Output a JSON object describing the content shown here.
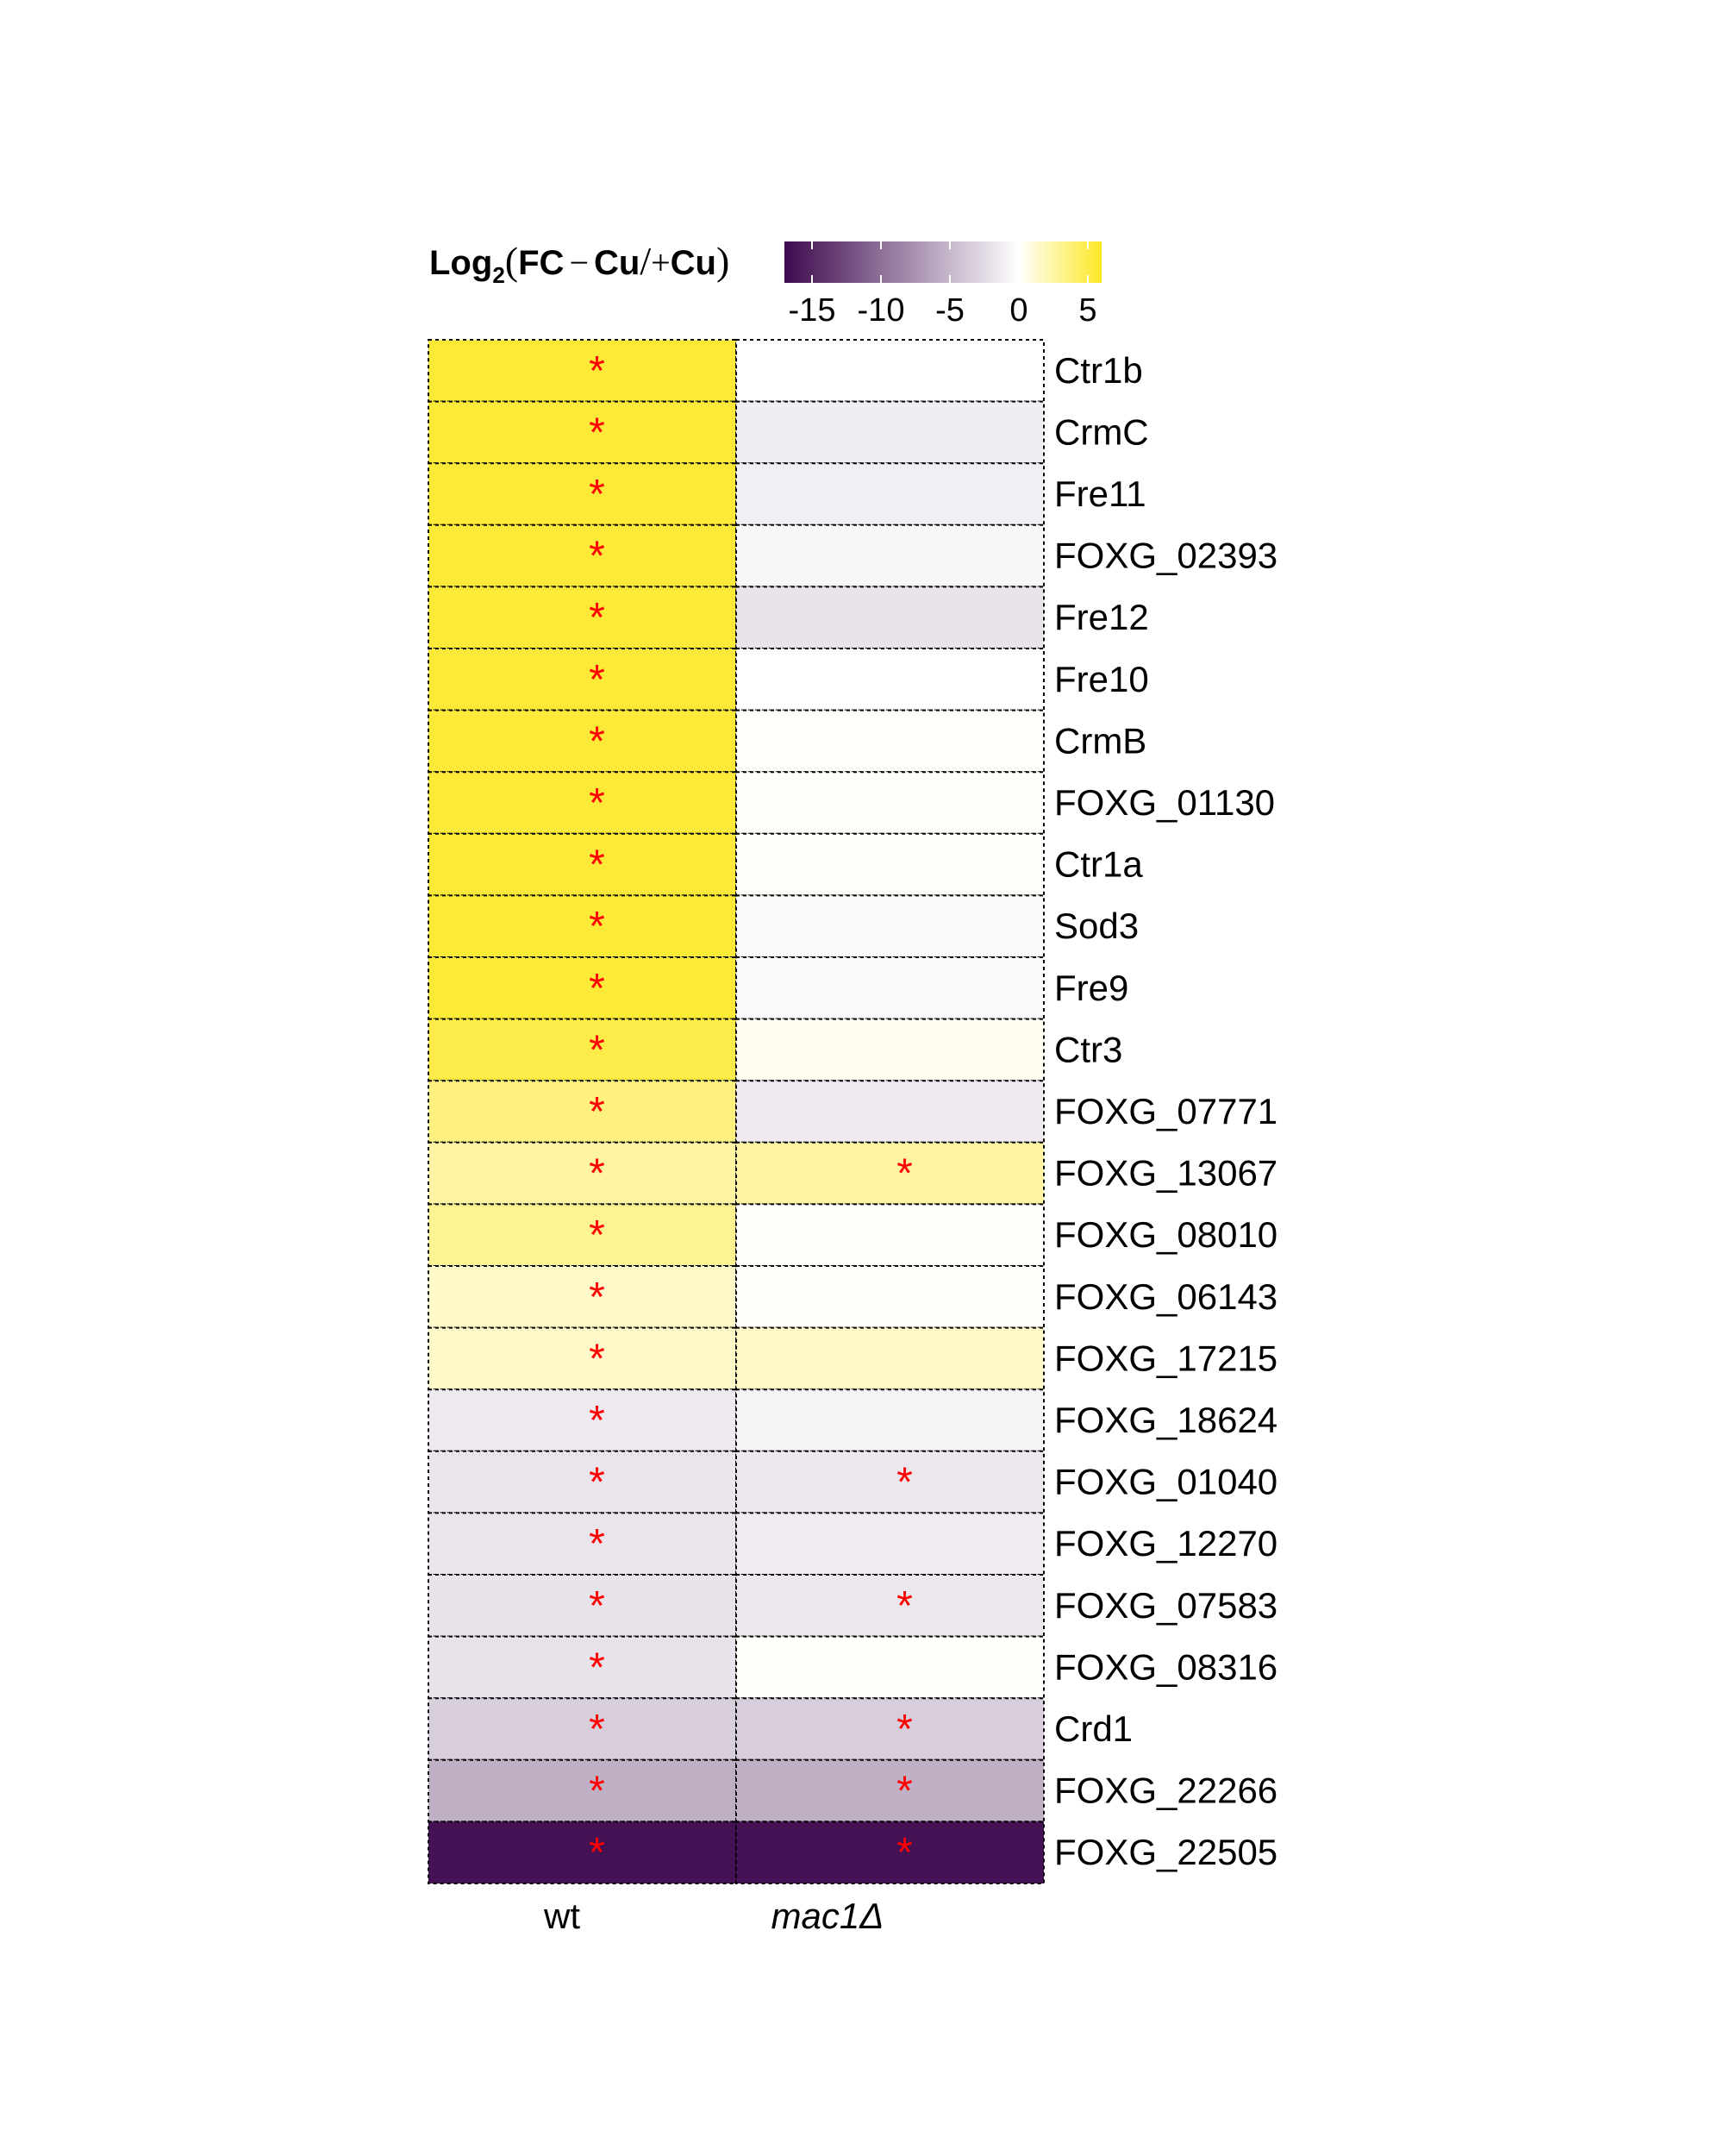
{
  "chart_data": {
    "type": "heatmap",
    "legend": {
      "title_parts": {
        "log": "Log",
        "sub": "2",
        "open": "(",
        "fc": "FC",
        "minus": "−",
        "cu1": "Cu",
        "slash": "/",
        "plus": "+",
        "cu2": "Cu",
        "close": ")"
      },
      "ticks": [
        -15,
        -10,
        -5,
        0,
        5
      ],
      "tick_labels": [
        "-15",
        "-10",
        "-5",
        "0",
        "5"
      ],
      "range": [
        -17,
        6
      ],
      "colors": {
        "low": "#3d0a4f",
        "mid": "#ffffff",
        "high": "#fde725"
      },
      "placement": "top"
    },
    "columns": [
      "wt",
      "mac1Δ"
    ],
    "columns_italic": [
      false,
      true
    ],
    "rows": [
      "Ctr1b",
      "CrmC",
      "Fre11",
      "FOXG_02393",
      "Fre12",
      "Fre10",
      "CrmB",
      "FOXG_01130",
      "Ctr1a",
      "Sod3",
      "Fre9",
      "Ctr3",
      "FOXG_07771",
      "FOXG_13067",
      "FOXG_08010",
      "FOXG_06143",
      "FOXG_17215",
      "FOXG_18624",
      "FOXG_01040",
      "FOXG_12270",
      "FOXG_07583",
      "FOXG_08316",
      "Crd1",
      "FOXG_22266",
      "FOXG_22505"
    ],
    "values": [
      [
        5.5,
        0.0
      ],
      [
        5.5,
        -1.2
      ],
      [
        5.5,
        -1.1
      ],
      [
        5.5,
        -0.6
      ],
      [
        5.5,
        -2.0
      ],
      [
        5.5,
        0.0
      ],
      [
        5.5,
        0.1
      ],
      [
        5.5,
        0.15
      ],
      [
        5.5,
        0.15
      ],
      [
        5.5,
        -0.4
      ],
      [
        5.5,
        -0.4
      ],
      [
        5.0,
        0.4
      ],
      [
        3.5,
        -1.5
      ],
      [
        2.5,
        2.5
      ],
      [
        3.0,
        0.15
      ],
      [
        1.5,
        0.2
      ],
      [
        1.5,
        1.5
      ],
      [
        -1.5,
        -0.8
      ],
      [
        -1.8,
        -1.7
      ],
      [
        -1.8,
        -1.4
      ],
      [
        -2.0,
        -1.7
      ],
      [
        -2.0,
        0.2
      ],
      [
        -3.5,
        -3.5
      ],
      [
        -5.5,
        -5.5
      ],
      [
        -16.5,
        -16.5
      ]
    ],
    "significant": [
      [
        true,
        false
      ],
      [
        true,
        false
      ],
      [
        true,
        false
      ],
      [
        true,
        false
      ],
      [
        true,
        false
      ],
      [
        true,
        false
      ],
      [
        true,
        false
      ],
      [
        true,
        false
      ],
      [
        true,
        false
      ],
      [
        true,
        false
      ],
      [
        true,
        false
      ],
      [
        true,
        false
      ],
      [
        true,
        false
      ],
      [
        true,
        true
      ],
      [
        true,
        false
      ],
      [
        true,
        false
      ],
      [
        true,
        false
      ],
      [
        true,
        false
      ],
      [
        true,
        true
      ],
      [
        true,
        false
      ],
      [
        true,
        true
      ],
      [
        true,
        false
      ],
      [
        true,
        true
      ],
      [
        true,
        true
      ],
      [
        true,
        true
      ]
    ],
    "marker": "*",
    "marker_color": "#ff0000",
    "grid": true
  }
}
